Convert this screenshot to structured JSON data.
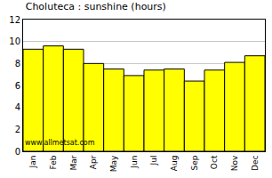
{
  "chart_data": {
    "type": "bar",
    "title": "Choluteca : sunshine (hours)",
    "categories": [
      "Jan",
      "Feb",
      "Mar",
      "Apr",
      "May",
      "Jun",
      "Jul",
      "Aug",
      "Sep",
      "Oct",
      "Nov",
      "Dec"
    ],
    "values": [
      9.3,
      9.6,
      9.3,
      8.0,
      7.5,
      6.9,
      7.4,
      7.5,
      6.4,
      7.4,
      8.1,
      8.7
    ],
    "color": "#ffff00",
    "ylim": [
      0,
      12
    ],
    "yticks": [
      0,
      2,
      4,
      6,
      8,
      10,
      12
    ],
    "grid": true,
    "annotations": [
      "www.allmetsat.com"
    ]
  }
}
